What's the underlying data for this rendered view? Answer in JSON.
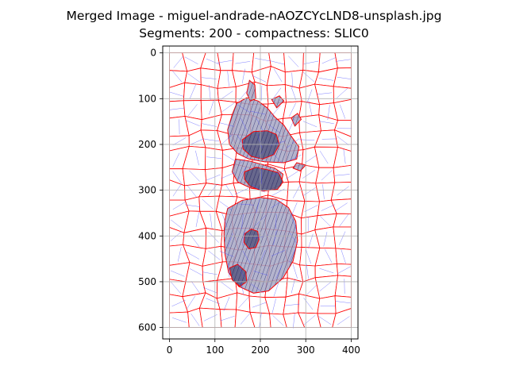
{
  "figure": {
    "title_line1": "Merged Image - miguel-andrade-nAOZCYcLND8-unsplash.jpg",
    "title_line2": "Segments: 200 - compactness: SLIC0"
  },
  "chart_data": {
    "type": "image-segmentation-overlay",
    "title": "Merged Image - miguel-andrade-nAOZCYcLND8-unsplash.jpg\nSegments: 200 - compactness: SLIC0",
    "xlabel": "",
    "ylabel": "",
    "xlim": [
      -15,
      415
    ],
    "ylim": [
      625,
      -15
    ],
    "x_ticks": [
      0,
      100,
      200,
      300,
      400
    ],
    "y_ticks": [
      0,
      100,
      200,
      300,
      400,
      500,
      600
    ],
    "image_extent": {
      "width": 400,
      "height": 600
    },
    "grid": true,
    "segments": 200,
    "compactness": "SLIC0",
    "colors": {
      "boundary": "#ff0000",
      "hatch": "#4a4aff",
      "grid": "#b0b0b0",
      "light_fill": "#e6e6ee",
      "mid_fill": "#a7a7c4",
      "dark_fill": "#5f5f86"
    },
    "merged_regions": [
      {
        "shade": "dark",
        "points": [
          [
            160,
            190
          ],
          [
            185,
            172
          ],
          [
            215,
            170
          ],
          [
            235,
            178
          ],
          [
            242,
            200
          ],
          [
            230,
            222
          ],
          [
            205,
            232
          ],
          [
            180,
            226
          ],
          [
            162,
            210
          ]
        ]
      },
      {
        "shade": "dark",
        "points": [
          [
            165,
            260
          ],
          [
            190,
            250
          ],
          [
            215,
            255
          ],
          [
            240,
            262
          ],
          [
            250,
            282
          ],
          [
            238,
            298
          ],
          [
            205,
            302
          ],
          [
            178,
            292
          ],
          [
            165,
            276
          ]
        ]
      },
      {
        "shade": "dark",
        "points": [
          [
            166,
            395
          ],
          [
            180,
            385
          ],
          [
            194,
            390
          ],
          [
            197,
            408
          ],
          [
            190,
            425
          ],
          [
            175,
            428
          ],
          [
            164,
            414
          ]
        ]
      },
      {
        "shade": "dark",
        "points": [
          [
            132,
            470
          ],
          [
            150,
            462
          ],
          [
            168,
            478
          ],
          [
            170,
            500
          ],
          [
            155,
            510
          ],
          [
            138,
            496
          ]
        ]
      },
      {
        "shade": "mid",
        "points": [
          [
            148,
            110
          ],
          [
            170,
            98
          ],
          [
            195,
            105
          ],
          [
            215,
            120
          ],
          [
            232,
            140
          ],
          [
            252,
            158
          ],
          [
            268,
            182
          ],
          [
            285,
            205
          ],
          [
            280,
            232
          ],
          [
            252,
            240
          ],
          [
            210,
            238
          ],
          [
            175,
            232
          ],
          [
            150,
            220
          ],
          [
            132,
            200
          ],
          [
            128,
            168
          ],
          [
            138,
            135
          ]
        ]
      },
      {
        "shade": "mid",
        "points": [
          [
            176,
            60
          ],
          [
            188,
            70
          ],
          [
            190,
            100
          ],
          [
            178,
            105
          ],
          [
            170,
            88
          ]
        ]
      },
      {
        "shade": "mid",
        "points": [
          [
            225,
            102
          ],
          [
            242,
            94
          ],
          [
            252,
            105
          ],
          [
            236,
            120
          ]
        ]
      },
      {
        "shade": "mid",
        "points": [
          [
            268,
            142
          ],
          [
            282,
            132
          ],
          [
            290,
            145
          ],
          [
            276,
            160
          ]
        ]
      },
      {
        "shade": "mid",
        "points": [
          [
            280,
            240
          ],
          [
            300,
            245
          ],
          [
            288,
            258
          ],
          [
            272,
            252
          ]
        ]
      },
      {
        "shade": "mid",
        "points": [
          [
            145,
            232
          ],
          [
            175,
            236
          ],
          [
            205,
            244
          ],
          [
            232,
            252
          ],
          [
            250,
            265
          ],
          [
            245,
            290
          ],
          [
            215,
            300
          ],
          [
            180,
            296
          ],
          [
            150,
            282
          ],
          [
            138,
            260
          ]
        ]
      },
      {
        "shade": "mid",
        "points": [
          [
            128,
            340
          ],
          [
            160,
            322
          ],
          [
            200,
            316
          ],
          [
            235,
            320
          ],
          [
            262,
            338
          ],
          [
            278,
            368
          ],
          [
            282,
            410
          ],
          [
            272,
            455
          ],
          [
            250,
            492
          ],
          [
            218,
            520
          ],
          [
            185,
            525
          ],
          [
            152,
            510
          ],
          [
            130,
            480
          ],
          [
            122,
            440
          ],
          [
            120,
            395
          ],
          [
            122,
            365
          ]
        ]
      }
    ]
  }
}
